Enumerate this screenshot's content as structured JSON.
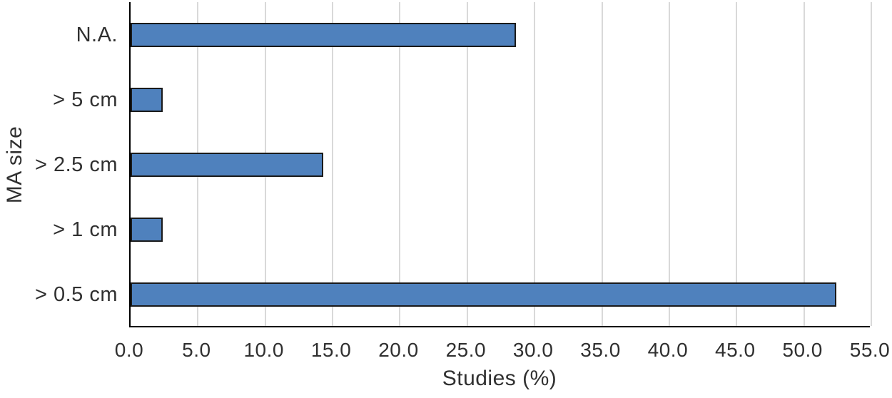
{
  "chart_data": {
    "type": "bar",
    "orientation": "horizontal",
    "title": "",
    "xlabel": "Studies (%)",
    "ylabel": "MA size",
    "categories": [
      "N.A.",
      "> 5 cm",
      "> 2.5 cm",
      "> 1 cm",
      "> 0.5 cm"
    ],
    "values": [
      28.6,
      2.4,
      14.3,
      2.4,
      52.4
    ],
    "xlim": [
      0,
      55
    ],
    "x_tick_values": [
      0,
      5,
      10,
      15,
      20,
      25,
      30,
      35,
      40,
      45,
      50,
      55
    ],
    "x_tick_labels": [
      "0.0",
      "5.0",
      "10.0",
      "15.0",
      "20.0",
      "25.0",
      "30.0",
      "35.0",
      "40.0",
      "45.0",
      "50.0",
      "55.0"
    ],
    "grid": "vertical",
    "legend": "none",
    "colors": {
      "bar_fill": "#4F81BD",
      "bar_border": "#1A1A1A",
      "gridline": "#D9D9D9",
      "axis": "#000000",
      "text": "#303030",
      "background": "#FFFFFF"
    }
  }
}
